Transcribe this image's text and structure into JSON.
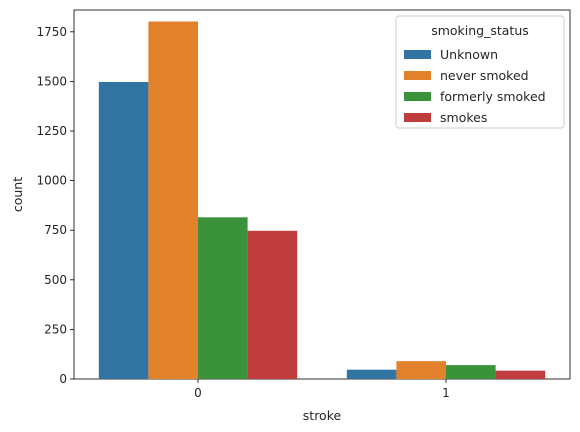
{
  "chart_data": {
    "type": "bar",
    "xlabel": "stroke",
    "ylabel": "count",
    "categories": [
      "0",
      "1"
    ],
    "ylim": [
      0,
      1860
    ],
    "yticks": [
      0,
      250,
      500,
      750,
      1000,
      1250,
      1500,
      1750
    ],
    "grid": false,
    "legend": {
      "title": "smoking_status",
      "placement": "top-right"
    },
    "series": [
      {
        "name": "Unknown",
        "color": "#3274a1",
        "values": [
          1497,
          47
        ]
      },
      {
        "name": "never smoked",
        "color": "#e1812c",
        "values": [
          1802,
          90
        ]
      },
      {
        "name": "formerly smoked",
        "color": "#3a923a",
        "values": [
          815,
          70
        ]
      },
      {
        "name": "smokes",
        "color": "#c03d3e",
        "values": [
          747,
          42
        ]
      }
    ]
  }
}
